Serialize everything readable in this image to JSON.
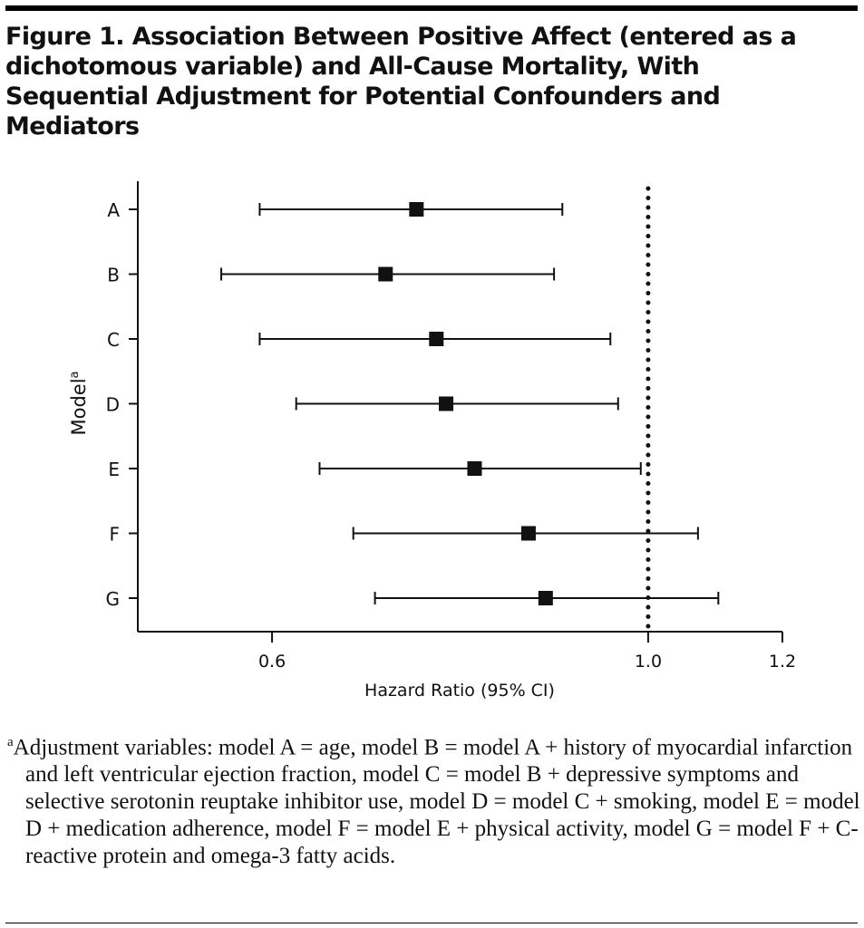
{
  "title": "Figure 1. Association Between Positive Affect (entered as a dichotomous variable) and All-Cause Mortality, With Sequential Adjustment for Potential Confounders and Mediators",
  "chart_data": {
    "type": "forest",
    "xlabel": "Hazard Ratio (95% CI)",
    "ylabel": "Model",
    "ylabel_superscript": "a",
    "x_scale": "log",
    "xlim": [
      0.5,
      1.2
    ],
    "x_ticks": [
      "0.6",
      "1.0",
      "1.2"
    ],
    "reference_line": 1.0,
    "categories": [
      "A",
      "B",
      "C",
      "D",
      "E",
      "F",
      "G"
    ],
    "hr": [
      0.73,
      0.7,
      0.75,
      0.76,
      0.79,
      0.85,
      0.87
    ],
    "lower": [
      0.59,
      0.56,
      0.59,
      0.62,
      0.64,
      0.67,
      0.69
    ],
    "upper": [
      0.89,
      0.88,
      0.95,
      0.96,
      0.99,
      1.07,
      1.1
    ],
    "grid": false
  },
  "footnote": {
    "marker": "a",
    "text": "Adjustment variables: model A = age, model B = model A + history of myocardial infarction and left ventricular ejection fraction, model C = model B + depressive symptoms and selective serotonin reuptake inhibitor use, model D = model C + smoking, model E = model D + medication adherence, model F = model E + physical activity, model G = model F + C-reactive protein and omega-3 fatty acids."
  }
}
